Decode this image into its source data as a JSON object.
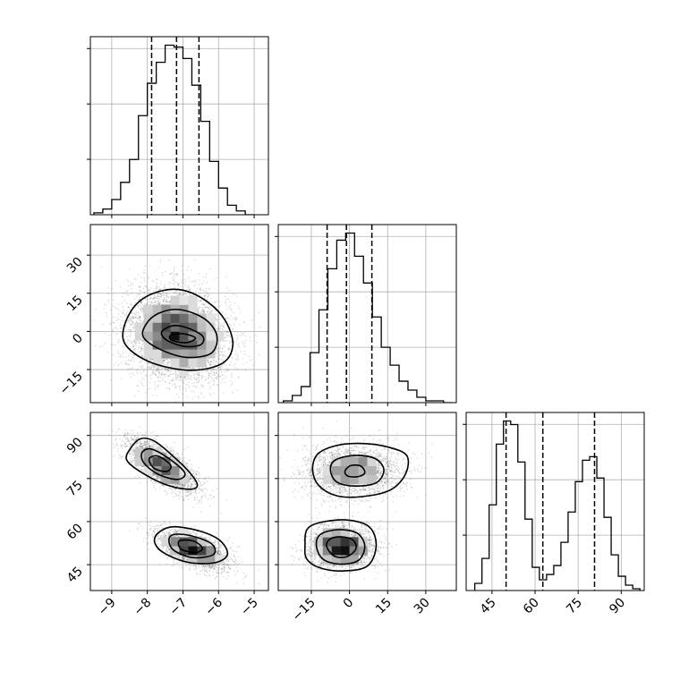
{
  "chart_data": {
    "type": "corner",
    "title": "",
    "background": "#ffffff",
    "ink": "#000000",
    "grid": true,
    "parameters": [
      {
        "range": [
          -9.6,
          -4.6
        ],
        "ticks": [
          "−9",
          "−8",
          "−7",
          "−6",
          "−5"
        ],
        "tick_values": [
          -9,
          -8,
          -7,
          -6,
          -5
        ]
      },
      {
        "range": [
          -28,
          42
        ],
        "ticks": [
          "−15",
          "0",
          "15",
          "30"
        ],
        "tick_values": [
          -15,
          0,
          15,
          30
        ]
      },
      {
        "range": [
          36,
          98
        ],
        "ticks": [
          "45",
          "60",
          "75",
          "90"
        ],
        "tick_values": [
          45,
          60,
          75,
          90
        ]
      }
    ],
    "histograms": [
      {
        "param": 0,
        "bin_edges": [
          -9.5,
          -9.25,
          -9.0,
          -8.75,
          -8.5,
          -8.25,
          -8.0,
          -7.75,
          -7.5,
          -7.25,
          -7.0,
          -6.75,
          -6.5,
          -6.25,
          -6.0,
          -5.75,
          -5.5,
          -5.25,
          -5.0
        ],
        "counts": [
          1,
          3,
          8,
          17,
          29,
          52,
          69,
          80,
          89,
          88,
          82,
          68,
          49,
          28,
          14,
          5,
          2,
          0
        ],
        "quantiles": [
          -7.88,
          -7.18,
          -6.55
        ]
      },
      {
        "param": 1,
        "bin_edges": [
          -26,
          -22.5,
          -19,
          -15.5,
          -12,
          -8.5,
          -5,
          -1.5,
          2,
          5.5,
          9,
          12.5,
          16,
          19.5,
          23,
          26.5,
          30,
          33.5,
          37,
          40.5
        ],
        "counts": [
          1,
          4,
          9,
          28,
          52,
          75,
          91,
          95,
          82,
          67,
          48,
          31,
          21,
          12,
          7,
          3,
          1,
          1,
          0
        ],
        "quantiles": [
          -8.8,
          -1.2,
          8.8
        ]
      },
      {
        "param": 2,
        "bin_edges": [
          39,
          41.5,
          44,
          46.5,
          49,
          51.5,
          54,
          56.5,
          59,
          61.5,
          64,
          66.5,
          69,
          71.5,
          74,
          76.5,
          79,
          81.5,
          84,
          86.5,
          89,
          91.5,
          94,
          96.5
        ],
        "counts": [
          4,
          18,
          48,
          82,
          95,
          93,
          72,
          40,
          13,
          6,
          9,
          14,
          27,
          44,
          61,
          73,
          75,
          63,
          41,
          20,
          8,
          3,
          1
        ],
        "quantiles": [
          49.9,
          62.7,
          80.7
        ]
      }
    ],
    "scatter_panels": [
      {
        "x_param": 0,
        "y_param": 1,
        "modes": [
          {
            "cx": -7.15,
            "cy": -1.0,
            "sx": 0.72,
            "sy": 9.2,
            "rho": -0.15,
            "weight": 1.0
          }
        ],
        "contours": [
          {
            "level": "outer",
            "points": [
              [
                -8.65,
                2.0
              ],
              [
                -8.3,
                10.8
              ],
              [
                -7.7,
                15.6
              ],
              [
                -7.0,
                16.2
              ],
              [
                -6.3,
                11.5
              ],
              [
                -5.8,
                4.0
              ],
              [
                -5.6,
                -5.5
              ],
              [
                -5.9,
                -12.6
              ],
              [
                -6.8,
                -15.3
              ],
              [
                -7.9,
                -12.2
              ],
              [
                -8.6,
                -5.5
              ]
            ]
          },
          {
            "level": "middle",
            "points": [
              [
                -8.05,
                2.5
              ],
              [
                -7.7,
                7.0
              ],
              [
                -7.1,
                8.6
              ],
              [
                -6.4,
                5.0
              ],
              [
                -6.05,
                -1.5
              ],
              [
                -6.2,
                -8.5
              ],
              [
                -6.9,
                -10.2
              ],
              [
                -7.6,
                -7.3
              ],
              [
                -8.1,
                -2.5
              ]
            ]
          },
          {
            "level": "inner",
            "points": [
              [
                -7.6,
                -0.3
              ],
              [
                -7.3,
                2.2
              ],
              [
                -6.9,
                1.5
              ],
              [
                -6.45,
                -1.8
              ],
              [
                -6.5,
                -5.2
              ],
              [
                -6.95,
                -5.9
              ],
              [
                -7.45,
                -3.5
              ]
            ]
          },
          {
            "level": "core",
            "points": [
              [
                -7.35,
                -1.6
              ],
              [
                -7.0,
                -0.9
              ],
              [
                -6.65,
                -2.6
              ],
              [
                -6.9,
                -4.4
              ],
              [
                -7.3,
                -3.6
              ]
            ]
          }
        ]
      },
      {
        "x_param": 0,
        "y_param": 2,
        "modes": [
          {
            "cx": -7.6,
            "cy": 79.5,
            "sx": 0.5,
            "sy": 4.6,
            "rho": -0.72,
            "weight": 0.5
          },
          {
            "cx": -6.75,
            "cy": 50.5,
            "sx": 0.5,
            "sy": 3.5,
            "rho": -0.6,
            "weight": 0.5
          }
        ],
        "contours": [
          {
            "level": "outer",
            "points": [
              [
                -8.5,
                85.0
              ],
              [
                -8.2,
                88.8
              ],
              [
                -7.8,
                88.0
              ],
              [
                -7.25,
                82.5
              ],
              [
                -6.75,
                76.2
              ],
              [
                -6.6,
                72.3
              ],
              [
                -6.9,
                71.3
              ],
              [
                -7.55,
                73.2
              ],
              [
                -8.25,
                77.8
              ],
              [
                -8.58,
                81.5
              ]
            ]
          },
          {
            "level": "middle",
            "points": [
              [
                -8.15,
                84.0
              ],
              [
                -7.9,
                85.3
              ],
              [
                -7.4,
                82.0
              ],
              [
                -6.95,
                77.0
              ],
              [
                -7.15,
                74.7
              ],
              [
                -7.7,
                76.5
              ],
              [
                -8.1,
                80.5
              ]
            ]
          },
          {
            "level": "inner",
            "points": [
              [
                -7.95,
                81.8
              ],
              [
                -7.7,
                82.8
              ],
              [
                -7.35,
                79.7
              ],
              [
                -7.45,
                77.5
              ],
              [
                -7.8,
                78.5
              ]
            ]
          },
          {
            "level": "outer",
            "points": [
              [
                -7.65,
                56.5
              ],
              [
                -7.25,
                58.2
              ],
              [
                -6.5,
                56.6
              ],
              [
                -5.95,
                53.3
              ],
              [
                -5.75,
                48.5
              ],
              [
                -6.1,
                45.7
              ],
              [
                -6.85,
                45.8
              ],
              [
                -7.55,
                49.2
              ],
              [
                -7.8,
                53.2
              ]
            ]
          },
          {
            "level": "middle",
            "points": [
              [
                -7.35,
                55.0
              ],
              [
                -6.85,
                55.3
              ],
              [
                -6.2,
                52.3
              ],
              [
                -6.15,
                48.5
              ],
              [
                -6.75,
                47.5
              ],
              [
                -7.3,
                50.5
              ]
            ]
          },
          {
            "level": "inner",
            "points": [
              [
                -7.1,
                53.3
              ],
              [
                -6.7,
                53.2
              ],
              [
                -6.45,
                50.7
              ],
              [
                -6.65,
                49.2
              ],
              [
                -7.05,
                50.4
              ]
            ]
          }
        ]
      },
      {
        "x_param": 1,
        "y_param": 2,
        "modes": [
          {
            "cx": 1.5,
            "cy": 77.5,
            "sx": 9.5,
            "sy": 4.5,
            "rho": 0.05,
            "weight": 0.5
          },
          {
            "cx": -3.5,
            "cy": 51.0,
            "sx": 6.5,
            "sy": 3.8,
            "rho": 0.0,
            "weight": 0.5
          }
        ],
        "contours": [
          {
            "level": "outer",
            "points": [
              [
                -14.5,
                78.0
              ],
              [
                -12.5,
                83.5
              ],
              [
                -5.0,
                86.5
              ],
              [
                5.0,
                87.2
              ],
              [
                15.0,
                86.0
              ],
              [
                22.5,
                83.0
              ],
              [
                22.0,
                76.5
              ],
              [
                16.0,
                71.0
              ],
              [
                5.0,
                68.7
              ],
              [
                -5.0,
                69.0
              ],
              [
                -12.0,
                72.5
              ]
            ]
          },
          {
            "level": "middle",
            "points": [
              [
                -7.5,
                78.0
              ],
              [
                -5.5,
                81.5
              ],
              [
                2.0,
                83.0
              ],
              [
                10.0,
                82.0
              ],
              [
                13.5,
                78.0
              ],
              [
                10.5,
                73.5
              ],
              [
                2.0,
                72.4
              ],
              [
                -5.0,
                73.8
              ]
            ]
          },
          {
            "level": "inner",
            "points": [
              [
                -1.8,
                77.5
              ],
              [
                0.5,
                79.5
              ],
              [
                4.5,
                79.3
              ],
              [
                6.0,
                77.0
              ],
              [
                3.5,
                75.7
              ],
              [
                -0.5,
                75.8
              ]
            ]
          },
          {
            "level": "outer",
            "points": [
              [
                -17.5,
                51.5
              ],
              [
                -16.5,
                57.5
              ],
              [
                -10.0,
                60.0
              ],
              [
                0.0,
                60.5
              ],
              [
                8.0,
                58.0
              ],
              [
                10.5,
                51.5
              ],
              [
                7.0,
                44.5
              ],
              [
                -3.0,
                42.8
              ],
              [
                -12.0,
                44.0
              ],
              [
                -16.8,
                47.0
              ]
            ]
          },
          {
            "level": "middle",
            "points": [
              [
                -13.0,
                51.5
              ],
              [
                -11.5,
                55.5
              ],
              [
                -4.5,
                57.2
              ],
              [
                3.0,
                56.0
              ],
              [
                6.0,
                51.5
              ],
              [
                3.5,
                46.5
              ],
              [
                -4.0,
                45.2
              ],
              [
                -10.5,
                47.0
              ]
            ]
          },
          {
            "level": "inner",
            "points": [
              [
                -9.0,
                51.5
              ],
              [
                -7.5,
                54.0
              ],
              [
                -3.0,
                54.7
              ],
              [
                1.5,
                53.5
              ],
              [
                2.5,
                50.5
              ],
              [
                -1.0,
                47.8
              ],
              [
                -6.0,
                48.0
              ]
            ]
          }
        ]
      }
    ]
  }
}
